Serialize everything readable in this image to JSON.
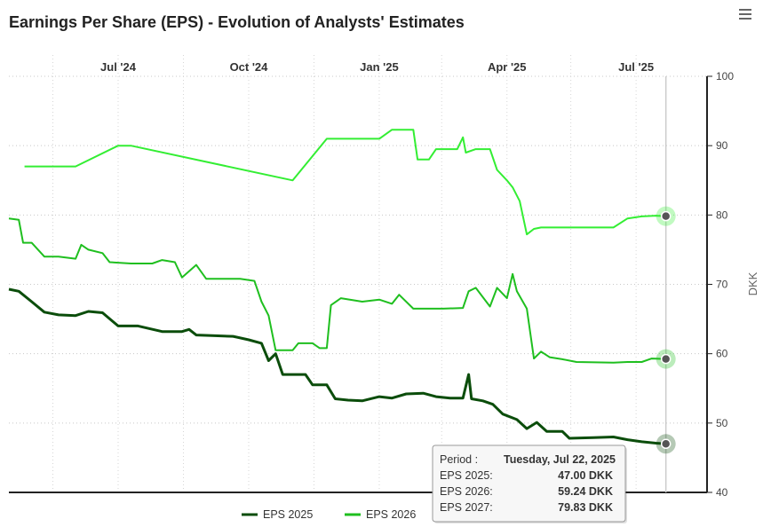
{
  "chart_data": {
    "type": "line",
    "title": "Earnings Per Share (EPS) - Evolution of Analysts' Estimates",
    "ylabel": "DKK",
    "ylim": [
      40,
      100
    ],
    "yticks": [
      40,
      50,
      60,
      70,
      80,
      90,
      100
    ],
    "xrange": [
      "2024-04-15",
      "2025-08-20"
    ],
    "xticks": [
      {
        "date": "2024-07-01",
        "label": "Jul '24"
      },
      {
        "date": "2024-10-01",
        "label": "Oct '24"
      },
      {
        "date": "2025-01-01",
        "label": "Jan '25"
      },
      {
        "date": "2025-04-01",
        "label": "Apr '25"
      },
      {
        "date": "2025-07-01",
        "label": "Jul '25"
      }
    ],
    "grid": "dotted",
    "legend_position": "bottom",
    "series": [
      {
        "name": "EPS 2025",
        "color": "#0b4d0b",
        "points": [
          [
            "2024-04-15",
            69.3
          ],
          [
            "2024-04-22",
            69.0
          ],
          [
            "2024-05-01",
            67.5
          ],
          [
            "2024-05-10",
            66.0
          ],
          [
            "2024-05-20",
            65.6
          ],
          [
            "2024-06-01",
            65.5
          ],
          [
            "2024-06-10",
            66.1
          ],
          [
            "2024-06-20",
            65.9
          ],
          [
            "2024-07-01",
            64.0
          ],
          [
            "2024-07-15",
            64.0
          ],
          [
            "2024-08-01",
            63.2
          ],
          [
            "2024-08-15",
            63.2
          ],
          [
            "2024-08-20",
            63.5
          ],
          [
            "2024-08-25",
            62.7
          ],
          [
            "2024-09-05",
            62.6
          ],
          [
            "2024-09-20",
            62.5
          ],
          [
            "2024-10-01",
            62.0
          ],
          [
            "2024-10-10",
            61.5
          ],
          [
            "2024-10-15",
            59.0
          ],
          [
            "2024-10-20",
            60.0
          ],
          [
            "2024-10-25",
            57.0
          ],
          [
            "2024-11-10",
            57.0
          ],
          [
            "2024-11-15",
            55.5
          ],
          [
            "2024-11-25",
            55.5
          ],
          [
            "2024-12-01",
            53.5
          ],
          [
            "2024-12-10",
            53.3
          ],
          [
            "2024-12-20",
            53.2
          ],
          [
            "2025-01-01",
            53.8
          ],
          [
            "2025-01-10",
            53.6
          ],
          [
            "2025-01-20",
            54.2
          ],
          [
            "2025-02-01",
            54.3
          ],
          [
            "2025-02-10",
            53.8
          ],
          [
            "2025-02-20",
            53.6
          ],
          [
            "2025-03-01",
            53.6
          ],
          [
            "2025-03-05",
            57.0
          ],
          [
            "2025-03-07",
            53.5
          ],
          [
            "2025-03-15",
            53.2
          ],
          [
            "2025-03-22",
            52.7
          ],
          [
            "2025-03-29",
            51.3
          ],
          [
            "2025-04-08",
            50.5
          ],
          [
            "2025-04-15",
            49.2
          ],
          [
            "2025-04-22",
            50.1
          ],
          [
            "2025-04-29",
            48.8
          ],
          [
            "2025-05-10",
            48.8
          ],
          [
            "2025-05-15",
            47.8
          ],
          [
            "2025-06-01",
            47.9
          ],
          [
            "2025-06-15",
            48.0
          ],
          [
            "2025-06-25",
            47.6
          ],
          [
            "2025-07-05",
            47.3
          ],
          [
            "2025-07-15",
            47.1
          ],
          [
            "2025-07-22",
            47.0
          ]
        ]
      },
      {
        "name": "EPS 2026",
        "color": "#1fbf1f",
        "points": [
          [
            "2024-04-15",
            79.5
          ],
          [
            "2024-04-22",
            79.3
          ],
          [
            "2024-04-25",
            76.0
          ],
          [
            "2024-05-01",
            76.0
          ],
          [
            "2024-05-10",
            74.0
          ],
          [
            "2024-05-20",
            74.0
          ],
          [
            "2024-06-01",
            73.7
          ],
          [
            "2024-06-05",
            75.7
          ],
          [
            "2024-06-10",
            75.0
          ],
          [
            "2024-06-20",
            74.5
          ],
          [
            "2024-06-25",
            73.2
          ],
          [
            "2024-07-10",
            73.0
          ],
          [
            "2024-07-25",
            73.0
          ],
          [
            "2024-08-01",
            73.5
          ],
          [
            "2024-08-10",
            73.2
          ],
          [
            "2024-08-15",
            71.0
          ],
          [
            "2024-08-25",
            72.8
          ],
          [
            "2024-09-01",
            70.8
          ],
          [
            "2024-09-25",
            70.8
          ],
          [
            "2024-10-05",
            70.5
          ],
          [
            "2024-10-10",
            67.5
          ],
          [
            "2024-10-15",
            65.5
          ],
          [
            "2024-10-20",
            60.5
          ],
          [
            "2024-11-01",
            60.5
          ],
          [
            "2024-11-05",
            61.5
          ],
          [
            "2024-11-15",
            61.5
          ],
          [
            "2024-11-20",
            60.8
          ],
          [
            "2024-11-25",
            60.8
          ],
          [
            "2024-11-28",
            67.0
          ],
          [
            "2024-12-05",
            68.0
          ],
          [
            "2024-12-20",
            67.5
          ],
          [
            "2025-01-01",
            67.8
          ],
          [
            "2025-01-10",
            67.2
          ],
          [
            "2025-01-15",
            68.5
          ],
          [
            "2025-01-25",
            66.5
          ],
          [
            "2025-02-15",
            66.5
          ],
          [
            "2025-03-01",
            66.6
          ],
          [
            "2025-03-05",
            69.0
          ],
          [
            "2025-03-10",
            69.5
          ],
          [
            "2025-03-20",
            66.8
          ],
          [
            "2025-03-25",
            69.5
          ],
          [
            "2025-04-01",
            68.0
          ],
          [
            "2025-04-05",
            71.5
          ],
          [
            "2025-04-08",
            69.0
          ],
          [
            "2025-04-15",
            66.5
          ],
          [
            "2025-04-20",
            59.3
          ],
          [
            "2025-04-25",
            60.3
          ],
          [
            "2025-05-01",
            59.5
          ],
          [
            "2025-05-10",
            59.2
          ],
          [
            "2025-05-20",
            58.8
          ],
          [
            "2025-06-15",
            58.7
          ],
          [
            "2025-06-25",
            58.8
          ],
          [
            "2025-07-05",
            58.8
          ],
          [
            "2025-07-12",
            59.3
          ],
          [
            "2025-07-22",
            59.24
          ]
        ]
      },
      {
        "name": "EPS 2027",
        "color": "#33ee33",
        "points": [
          [
            "2024-04-26",
            87.0
          ],
          [
            "2024-06-01",
            87.0
          ],
          [
            "2024-07-01",
            90.0
          ],
          [
            "2024-07-10",
            90.0
          ],
          [
            "2024-11-01",
            85.0
          ],
          [
            "2024-11-25",
            91.0
          ],
          [
            "2024-12-20",
            91.0
          ],
          [
            "2025-01-01",
            91.0
          ],
          [
            "2025-01-10",
            92.3
          ],
          [
            "2025-01-25",
            92.3
          ],
          [
            "2025-01-28",
            88.0
          ],
          [
            "2025-02-05",
            88.0
          ],
          [
            "2025-02-10",
            89.5
          ],
          [
            "2025-02-25",
            89.5
          ],
          [
            "2025-03-01",
            91.2
          ],
          [
            "2025-03-03",
            89.0
          ],
          [
            "2025-03-10",
            89.5
          ],
          [
            "2025-03-20",
            89.5
          ],
          [
            "2025-03-25",
            86.5
          ],
          [
            "2025-04-01",
            85.0
          ],
          [
            "2025-04-05",
            84.0
          ],
          [
            "2025-04-10",
            82.0
          ],
          [
            "2025-04-15",
            77.2
          ],
          [
            "2025-04-20",
            78.0
          ],
          [
            "2025-04-25",
            78.2
          ],
          [
            "2025-06-15",
            78.2
          ],
          [
            "2025-06-25",
            79.5
          ],
          [
            "2025-07-05",
            79.8
          ],
          [
            "2025-07-15",
            79.9
          ],
          [
            "2025-07-22",
            79.83
          ]
        ]
      }
    ],
    "tooltip": {
      "period_label": "Period :",
      "period_value": "Tuesday, Jul 22, 2025",
      "rows": [
        {
          "label": "EPS 2025:",
          "value": "47.00 DKK"
        },
        {
          "label": "EPS 2026:",
          "value": "59.24 DKK"
        },
        {
          "label": "EPS 2027:",
          "value": "79.83 DKK"
        }
      ]
    }
  },
  "icons": {
    "menu": "hamburger-menu-icon"
  }
}
